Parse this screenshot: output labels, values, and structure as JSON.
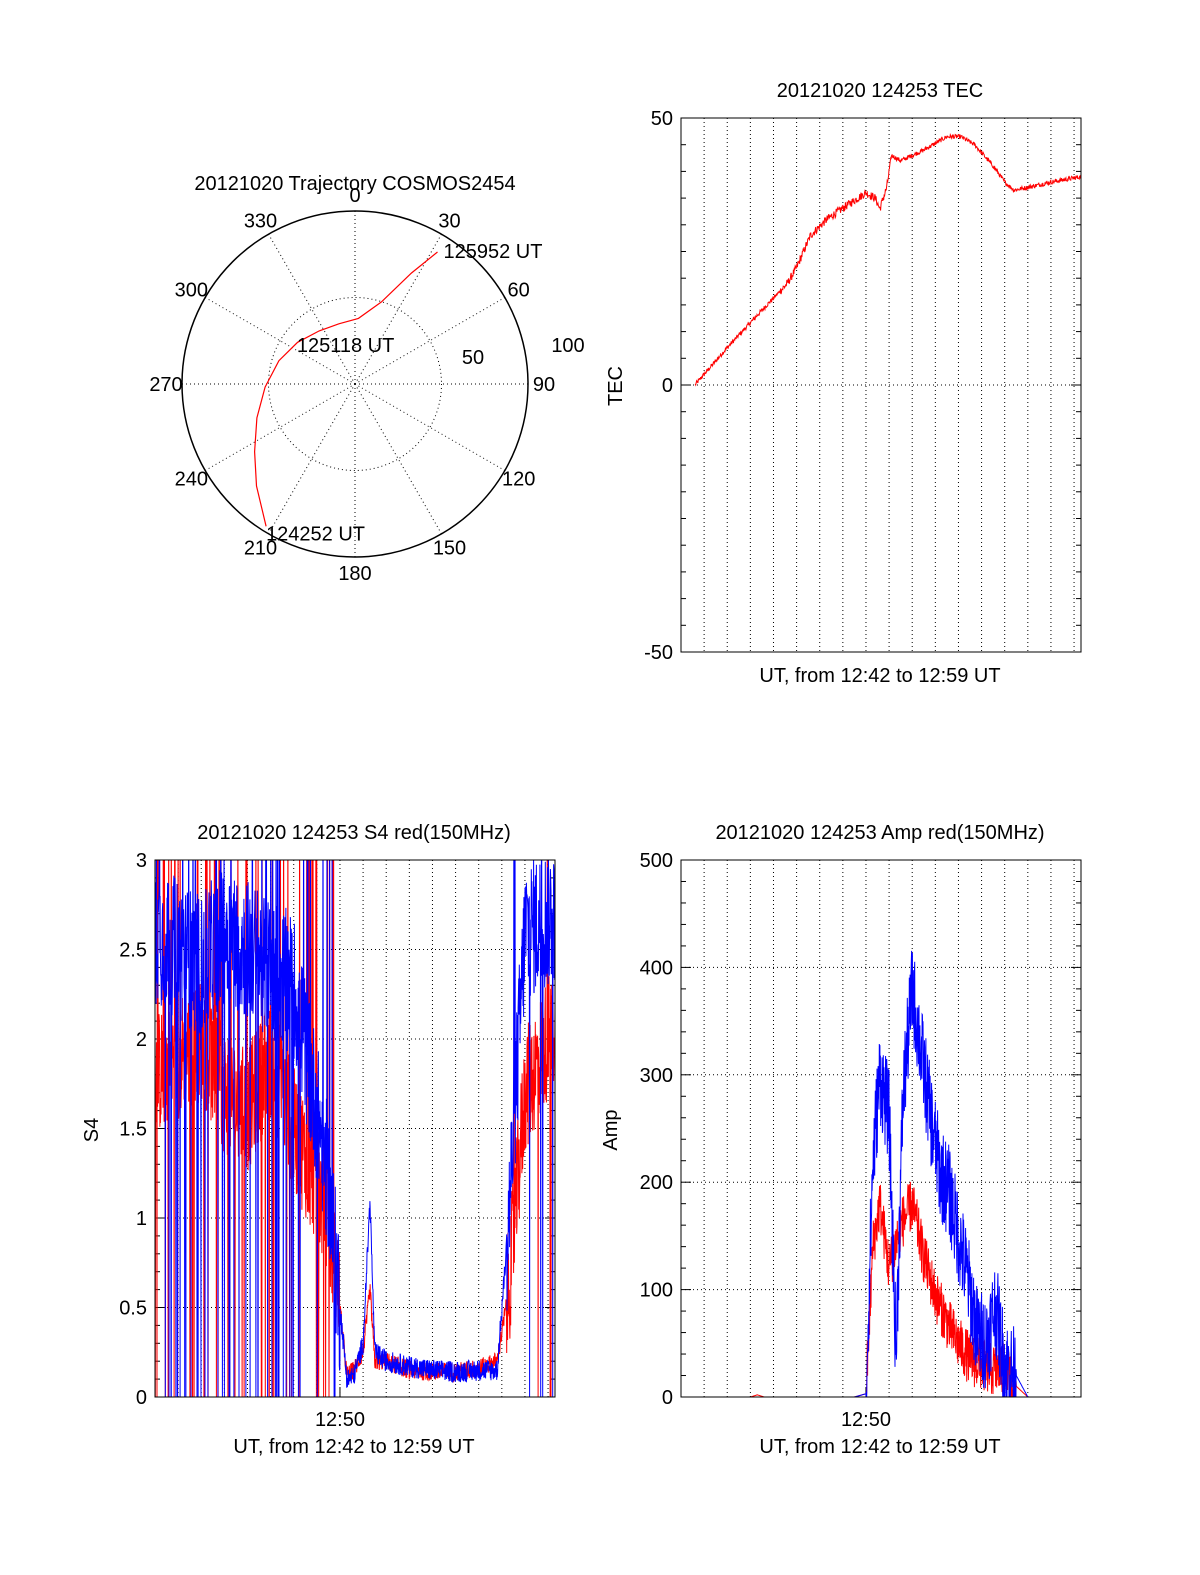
{
  "chart_data": [
    {
      "id": "trajectory",
      "type": "polar",
      "title": "20121020 Trajectory COSMOS2454",
      "angle_labels": [
        "0",
        "30",
        "60",
        "90",
        "120",
        "150",
        "180",
        "210",
        "240",
        "270",
        "300",
        "330"
      ],
      "radial_labels": [
        "50",
        "100"
      ],
      "zenith_angle_max": 100,
      "grid": true,
      "track_color": "#ff0000",
      "track_points": [
        {
          "az": 212,
          "za": 97,
          "label": "124252 UT"
        },
        {
          "az": 224,
          "za": 82
        },
        {
          "az": 236,
          "za": 70
        },
        {
          "az": 251,
          "za": 60
        },
        {
          "az": 268,
          "za": 52
        },
        {
          "az": 287,
          "za": 46
        },
        {
          "az": 306,
          "za": 41
        },
        {
          "az": 326,
          "za": 37
        },
        {
          "az": 345,
          "za": 36,
          "label": "125118 UT"
        },
        {
          "az": 3,
          "za": 38
        },
        {
          "az": 18,
          "za": 50
        },
        {
          "az": 27,
          "za": 72
        },
        {
          "az": 32,
          "za": 90,
          "label": "125952 UT"
        }
      ]
    },
    {
      "id": "tec",
      "type": "line",
      "title": "20121020 124253 TEC",
      "xlabel": "UT, from 12:42 to 12:59 UT",
      "ylabel": "TEC",
      "ylim": [
        -50,
        50
      ],
      "yticks": [
        -50,
        0,
        50
      ],
      "x_unit": "minutes after 12:42 UT",
      "xlim": [
        0,
        17.3
      ],
      "grid": true,
      "series": [
        {
          "color": "#ff0000",
          "noise": 0.6,
          "x": [
            0.6,
            2.0,
            3.5,
            4.6,
            5.0,
            5.6,
            6.3,
            7.3,
            8.0,
            8.4,
            8.6,
            8.9,
            9.1,
            9.5,
            10.5,
            11.5,
            12.1,
            12.7,
            13.5,
            14.0,
            14.4,
            15.0,
            16.0,
            17.3
          ],
          "y": [
            0,
            7,
            14,
            19,
            22,
            28,
            31,
            34,
            36,
            35,
            33,
            37,
            43,
            42,
            44,
            46.5,
            46.5,
            45,
            41,
            38,
            36.5,
            37,
            38,
            39
          ]
        }
      ]
    },
    {
      "id": "s4",
      "type": "line",
      "title": "20121020 124253 S4 red(150MHz)",
      "xlabel": "UT, from 12:42 to 12:59 UT",
      "ylabel": "S4",
      "ylim": [
        0,
        3
      ],
      "yticks": [
        0,
        0.5,
        1,
        1.5,
        2,
        2.5,
        3
      ],
      "ytick_labels": [
        "0",
        "0.5",
        "1",
        "1.5",
        "2",
        "2.5",
        "3"
      ],
      "x_unit": "minutes after 12:42 UT",
      "xlim": [
        0,
        17.3
      ],
      "xticks": [
        8
      ],
      "xtick_labels": [
        "12:50"
      ],
      "grid": true,
      "series": [
        {
          "color": "#ff0000",
          "noise": 0.35,
          "x": [
            0,
            1,
            2,
            3,
            4,
            5,
            6,
            7,
            7.5,
            8,
            8.3,
            8.6,
            9,
            9.3,
            9.5,
            10,
            11,
            12,
            13,
            14,
            14.8,
            15.3,
            16,
            17.3
          ],
          "y": [
            1.8,
            1.9,
            2.0,
            1.7,
            1.6,
            1.9,
            1.5,
            1.2,
            1.0,
            0.5,
            0.12,
            0.15,
            0.25,
            0.6,
            0.2,
            0.2,
            0.15,
            0.14,
            0.14,
            0.16,
            0.2,
            0.6,
            1.7,
            2.1
          ]
        },
        {
          "color": "#0000ff",
          "noise": 0.4,
          "x": [
            0,
            1,
            2,
            3,
            4,
            5,
            6,
            7,
            7.5,
            8,
            8.3,
            8.6,
            9,
            9.3,
            9.5,
            10,
            11,
            12,
            13,
            14,
            14.8,
            15.3,
            16,
            17.3
          ],
          "y": [
            2.6,
            2.5,
            2.4,
            2.6,
            2.5,
            2.4,
            2.3,
            1.6,
            1.2,
            0.5,
            0.1,
            0.12,
            0.3,
            1.1,
            0.25,
            0.2,
            0.17,
            0.15,
            0.14,
            0.15,
            0.15,
            1.0,
            2.6,
            2.7
          ]
        }
      ]
    },
    {
      "id": "amp",
      "type": "line",
      "title": "20121020 124253 Amp red(150MHz)",
      "xlabel": "UT, from 12:42 to 12:59 UT",
      "ylabel": "Amp",
      "ylim": [
        0,
        500
      ],
      "yticks": [
        0,
        100,
        200,
        300,
        400,
        500
      ],
      "x_unit": "minutes after 12:42 UT",
      "xlim": [
        0,
        17.3
      ],
      "xticks": [
        8
      ],
      "xtick_labels": [
        "12:50"
      ],
      "grid": true,
      "series": [
        {
          "color": "#ff0000",
          "noise": 25,
          "x": [
            0,
            3,
            3.3,
            3.6,
            7.5,
            8.0,
            8.3,
            8.6,
            9.0,
            9.5,
            10.0,
            10.5,
            11.0,
            11.5,
            12.0,
            12.5,
            13.0,
            13.5,
            14.0,
            14.5,
            15.0,
            17.3
          ],
          "y": [
            0,
            0,
            2,
            0,
            0,
            3,
            140,
            180,
            120,
            160,
            180,
            130,
            95,
            70,
            50,
            35,
            30,
            25,
            25,
            10,
            0,
            0
          ]
        },
        {
          "color": "#0000ff",
          "noise": 45,
          "x": [
            0,
            7.5,
            8.0,
            8.3,
            8.6,
            9.0,
            9.3,
            9.6,
            10.0,
            10.4,
            10.8,
            11.2,
            11.6,
            12.0,
            12.4,
            12.8,
            13.2,
            13.6,
            14.0,
            14.5,
            15.0,
            17.3
          ],
          "y": [
            0,
            0,
            3,
            220,
            300,
            260,
            40,
            280,
            380,
            320,
            260,
            210,
            190,
            150,
            110,
            60,
            50,
            85,
            30,
            20,
            0,
            0
          ]
        }
      ]
    }
  ]
}
